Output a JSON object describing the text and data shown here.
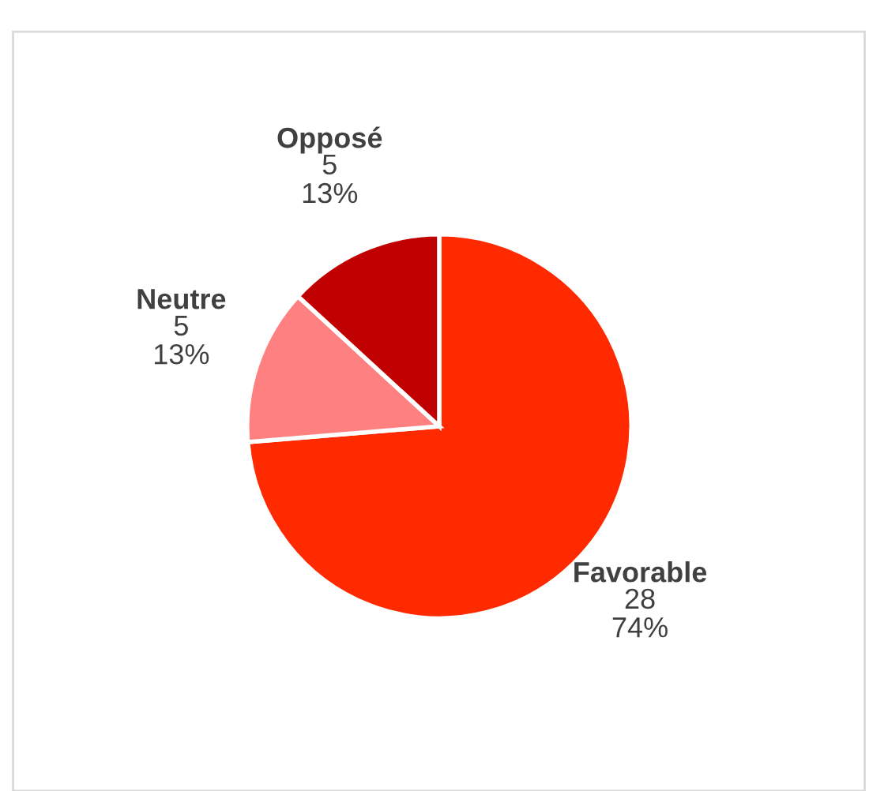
{
  "chart_data": {
    "type": "pie",
    "categories": [
      "Favorable",
      "Neutre",
      "Opposé"
    ],
    "values": [
      28,
      5,
      5
    ],
    "colors": [
      "#ff2a00",
      "#ff8080",
      "#c00000"
    ],
    "value_labels": [
      "28\n74%",
      "5\n13%",
      "5\n13%"
    ],
    "legend": false
  }
}
